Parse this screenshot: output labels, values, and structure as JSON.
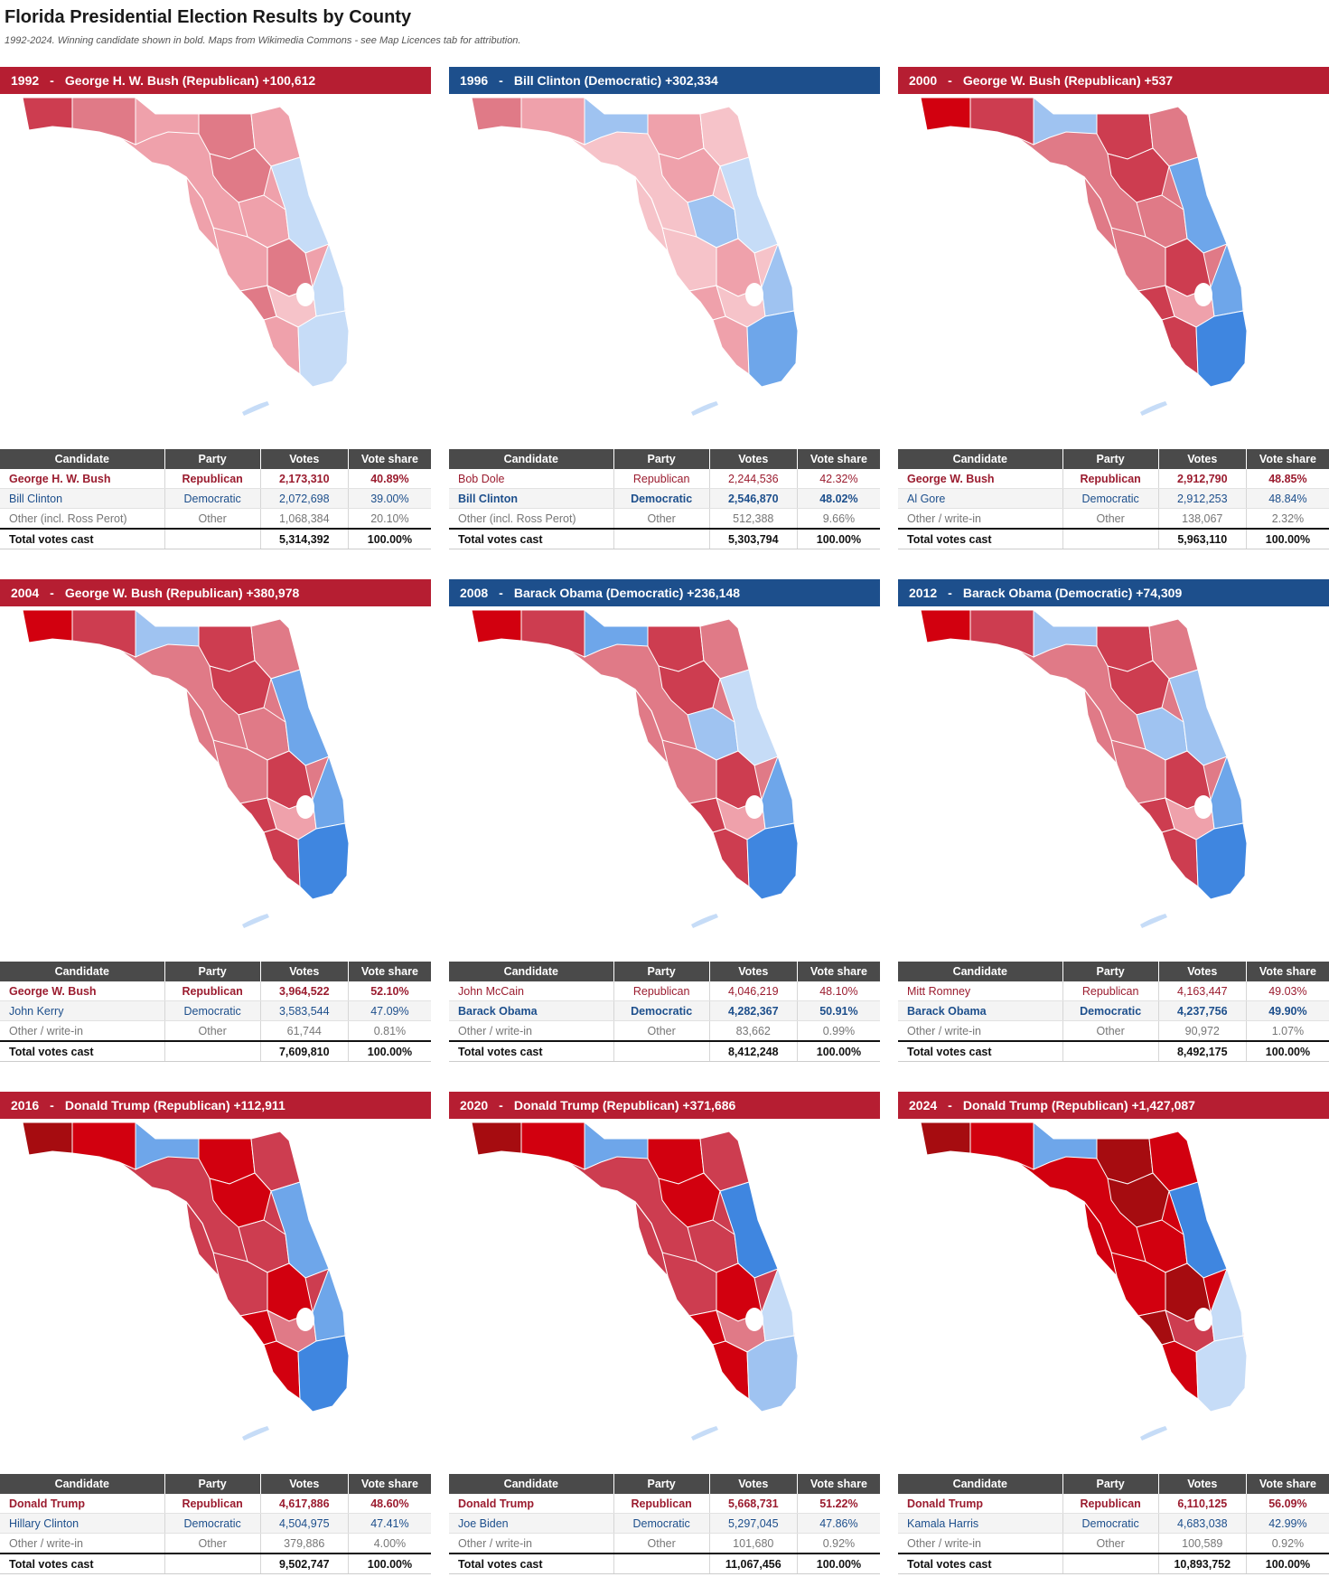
{
  "page": {
    "title": "Florida Presidential Election Results by County",
    "subtitle": "1992-2024. Winning candidate shown in bold. Maps from Wikimedia Commons - see Map Licences tab for attribution."
  },
  "headers": {
    "candidate": "Candidate",
    "party": "Party",
    "votes": "Votes",
    "share": "Vote share"
  },
  "colors": {
    "banner_republican": "#b61e32",
    "banner_democratic": "#1d4f8c",
    "header_bg": "#4a4a4a",
    "rep_text": "#9b1c2f",
    "dem_text": "#1d4f8c",
    "rep_scale": [
      "#f6c3c9",
      "#efa1ab",
      "#e07a87",
      "#cd3d50",
      "#d2000f",
      "#a60c10"
    ],
    "dem_scale": [
      "#c6dcf7",
      "#9fc3f1",
      "#6ea6ea",
      "#3f86e0"
    ]
  },
  "panels": [
    {
      "year": "1992",
      "party": "rep",
      "headline": "George H. W. Bush (Republican) +100,612",
      "map": {
        "base": 1,
        "north": 0,
        "center": 1,
        "south": 0
      },
      "rows": [
        {
          "candidate": "George H. W. Bush",
          "party": "Republican",
          "votes": "2,173,310",
          "share": "40.89%",
          "cls": "rep win"
        },
        {
          "candidate": "Bill Clinton",
          "party": "Democratic",
          "votes": "2,072,698",
          "share": "39.00%",
          "cls": "dem"
        },
        {
          "candidate": "Other (incl. Ross Perot)",
          "party": "Other",
          "votes": "1,068,384",
          "share": "20.10%",
          "cls": "oth"
        }
      ],
      "total": {
        "label": "Total votes cast",
        "votes": "5,314,392",
        "share": "100.00%"
      }
    },
    {
      "year": "1996",
      "party": "dem",
      "headline": "Bill Clinton (Democratic) +302,334",
      "map": {
        "base": 0,
        "north": 1,
        "center": 0,
        "south": 2
      },
      "rows": [
        {
          "candidate": "Bob Dole",
          "party": "Republican",
          "votes": "2,244,536",
          "share": "42.32%",
          "cls": "rep"
        },
        {
          "candidate": "Bill Clinton",
          "party": "Democratic",
          "votes": "2,546,870",
          "share": "48.02%",
          "cls": "dem win"
        },
        {
          "candidate": "Other (incl. Ross Perot)",
          "party": "Other",
          "votes": "512,388",
          "share": "9.66%",
          "cls": "oth"
        }
      ],
      "total": {
        "label": "Total votes cast",
        "votes": "5,303,794",
        "share": "100.00%"
      }
    },
    {
      "year": "2000",
      "party": "rep",
      "headline": "George W. Bush (Republican) +537",
      "map": {
        "base": 2,
        "north": 1,
        "center": 3,
        "south": 3
      },
      "rows": [
        {
          "candidate": "George W. Bush",
          "party": "Republican",
          "votes": "2,912,790",
          "share": "48.85%",
          "cls": "rep win"
        },
        {
          "candidate": "Al Gore",
          "party": "Democratic",
          "votes": "2,912,253",
          "share": "48.84%",
          "cls": "dem"
        },
        {
          "candidate": "Other / write-in",
          "party": "Other",
          "votes": "138,067",
          "share": "2.32%",
          "cls": "oth"
        }
      ],
      "total": {
        "label": "Total votes cast",
        "votes": "5,963,110",
        "share": "100.00%"
      }
    },
    {
      "year": "2004",
      "party": "rep",
      "headline": "George W. Bush (Republican) +380,978",
      "map": {
        "base": 2,
        "north": 1,
        "center": 3,
        "south": 3
      },
      "rows": [
        {
          "candidate": "George W. Bush",
          "party": "Republican",
          "votes": "3,964,522",
          "share": "52.10%",
          "cls": "rep win"
        },
        {
          "candidate": "John Kerry",
          "party": "Democratic",
          "votes": "3,583,544",
          "share": "47.09%",
          "cls": "dem"
        },
        {
          "candidate": "Other / write-in",
          "party": "Other",
          "votes": "61,744",
          "share": "0.81%",
          "cls": "oth"
        }
      ],
      "total": {
        "label": "Total votes cast",
        "votes": "7,609,810",
        "share": "100.00%"
      }
    },
    {
      "year": "2008",
      "party": "dem",
      "headline": "Barack Obama (Democratic) +236,148",
      "map": {
        "base": 2,
        "north": 2,
        "center": 1,
        "south": 3
      },
      "rows": [
        {
          "candidate": "John McCain",
          "party": "Republican",
          "votes": "4,046,219",
          "share": "48.10%",
          "cls": "rep"
        },
        {
          "candidate": "Barack Obama",
          "party": "Democratic",
          "votes": "4,282,367",
          "share": "50.91%",
          "cls": "dem win"
        },
        {
          "candidate": "Other / write-in",
          "party": "Other",
          "votes": "83,662",
          "share": "0.99%",
          "cls": "oth"
        }
      ],
      "total": {
        "label": "Total votes cast",
        "votes": "8,412,248",
        "share": "100.00%"
      }
    },
    {
      "year": "2012",
      "party": "dem",
      "headline": "Barack Obama (Democratic) +74,309",
      "map": {
        "base": 2,
        "north": 1,
        "center": 2,
        "south": 3
      },
      "rows": [
        {
          "candidate": "Mitt Romney",
          "party": "Republican",
          "votes": "4,163,447",
          "share": "49.03%",
          "cls": "rep"
        },
        {
          "candidate": "Barack Obama",
          "party": "Democratic",
          "votes": "4,237,756",
          "share": "49.90%",
          "cls": "dem win"
        },
        {
          "candidate": "Other / write-in",
          "party": "Other",
          "votes": "90,972",
          "share": "1.07%",
          "cls": "oth"
        }
      ],
      "total": {
        "label": "Total votes cast",
        "votes": "8,492,175",
        "share": "100.00%"
      }
    },
    {
      "year": "2016",
      "party": "rep",
      "headline": "Donald Trump (Republican) +112,911",
      "map": {
        "base": 3,
        "north": 2,
        "center": 3,
        "south": 3
      },
      "rows": [
        {
          "candidate": "Donald Trump",
          "party": "Republican",
          "votes": "4,617,886",
          "share": "48.60%",
          "cls": "rep win"
        },
        {
          "candidate": "Hillary Clinton",
          "party": "Democratic",
          "votes": "4,504,975",
          "share": "47.41%",
          "cls": "dem"
        },
        {
          "candidate": "Other / write-in",
          "party": "Other",
          "votes": "379,886",
          "share": "4.00%",
          "cls": "oth"
        }
      ],
      "total": {
        "label": "Total votes cast",
        "votes": "9,502,747",
        "share": "100.00%"
      }
    },
    {
      "year": "2020",
      "party": "rep",
      "headline": "Donald Trump (Republican) +371,686",
      "map": {
        "base": 3,
        "north": 2,
        "center": 4,
        "south": 1
      },
      "rows": [
        {
          "candidate": "Donald Trump",
          "party": "Republican",
          "votes": "5,668,731",
          "share": "51.22%",
          "cls": "rep win"
        },
        {
          "candidate": "Joe Biden",
          "party": "Democratic",
          "votes": "5,297,045",
          "share": "47.86%",
          "cls": "dem"
        },
        {
          "candidate": "Other / write-in",
          "party": "Other",
          "votes": "101,680",
          "share": "0.92%",
          "cls": "oth"
        }
      ],
      "total": {
        "label": "Total votes cast",
        "votes": "11,067,456",
        "share": "100.00%"
      }
    },
    {
      "year": "2024",
      "party": "rep",
      "headline": "Donald Trump (Republican) +1,427,087",
      "map": {
        "base": 4,
        "north": 2,
        "center": 4,
        "south": 0
      },
      "rows": [
        {
          "candidate": "Donald Trump",
          "party": "Republican",
          "votes": "6,110,125",
          "share": "56.09%",
          "cls": "rep win"
        },
        {
          "candidate": "Kamala Harris",
          "party": "Democratic",
          "votes": "4,683,038",
          "share": "42.99%",
          "cls": "dem"
        },
        {
          "candidate": "Other / write-in",
          "party": "Other",
          "votes": "100,589",
          "share": "0.92%",
          "cls": "oth"
        }
      ],
      "total": {
        "label": "Total votes cast",
        "votes": "10,893,752",
        "share": "100.00%"
      }
    }
  ]
}
